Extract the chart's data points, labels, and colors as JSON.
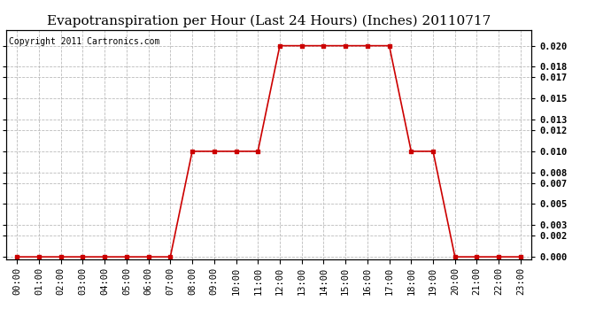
{
  "title": "Evapotranspiration per Hour (Last 24 Hours) (Inches) 20110717",
  "copyright_text": "Copyright 2011 Cartronics.com",
  "hours": [
    "00:00",
    "01:00",
    "02:00",
    "03:00",
    "04:00",
    "05:00",
    "06:00",
    "07:00",
    "08:00",
    "09:00",
    "10:00",
    "11:00",
    "12:00",
    "13:00",
    "14:00",
    "15:00",
    "16:00",
    "17:00",
    "18:00",
    "19:00",
    "20:00",
    "21:00",
    "22:00",
    "23:00"
  ],
  "values": [
    0.0,
    0.0,
    0.0,
    0.0,
    0.0,
    0.0,
    0.0,
    0.0,
    0.01,
    0.01,
    0.01,
    0.01,
    0.02,
    0.02,
    0.02,
    0.02,
    0.02,
    0.02,
    0.01,
    0.01,
    0.0,
    0.0,
    0.0,
    0.0
  ],
  "line_color": "#cc0000",
  "marker": "s",
  "marker_size": 3,
  "background_color": "#ffffff",
  "plot_bg_color": "#ffffff",
  "grid_color": "#bbbbbb",
  "title_fontsize": 11,
  "copyright_fontsize": 7,
  "tick_fontsize": 7.5,
  "ylim": [
    -0.0002,
    0.0215
  ],
  "yticks": [
    0.0,
    0.002,
    0.003,
    0.005,
    0.007,
    0.008,
    0.01,
    0.012,
    0.013,
    0.015,
    0.017,
    0.018,
    0.02
  ]
}
